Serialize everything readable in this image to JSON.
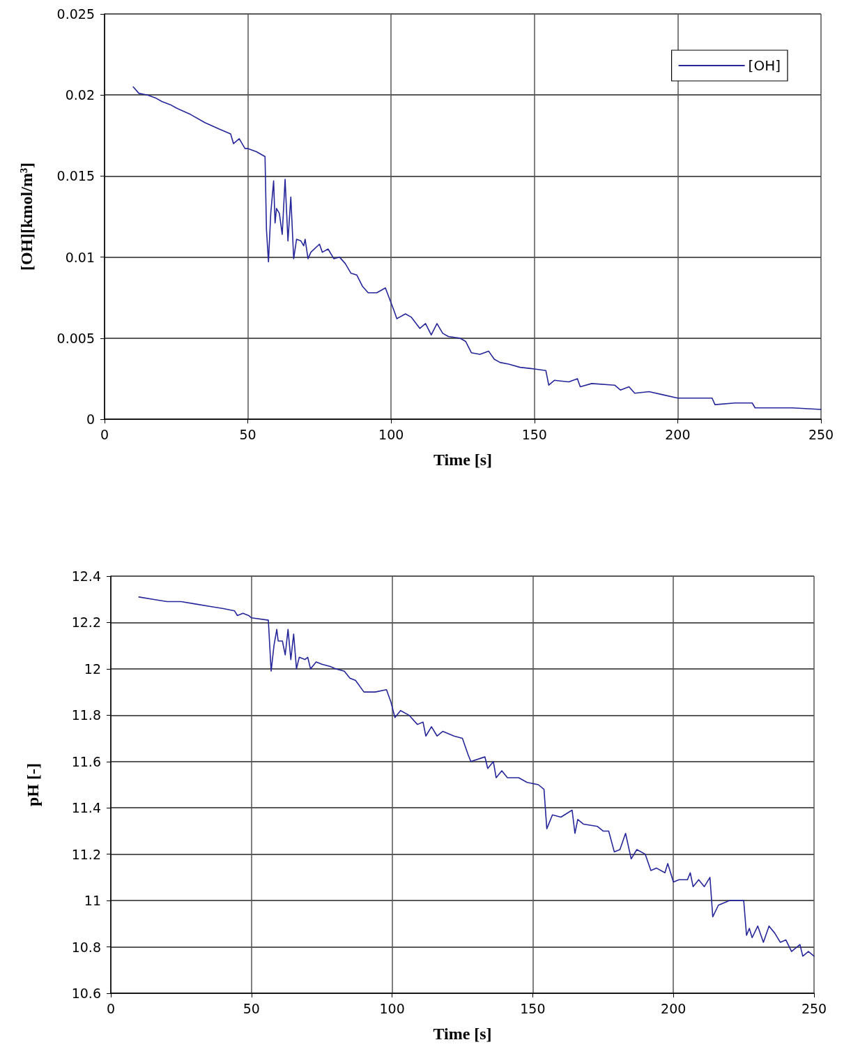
{
  "chart_data": [
    {
      "type": "line",
      "xlabel": "Time [s]",
      "ylabel": "[OH][kmol/m³]",
      "xlim": [
        0,
        250
      ],
      "xticks": [
        0,
        50,
        100,
        150,
        200,
        250
      ],
      "ylim": [
        0,
        0.025
      ],
      "yticks": [
        0,
        0.005,
        0.01,
        0.015,
        0.02,
        0.025
      ],
      "grid": true,
      "legend": "top right",
      "marker": "none",
      "line_style": "solid",
      "series": [
        {
          "name": "[OH]",
          "color": "#26269a",
          "x": [
            10,
            12,
            15,
            18,
            20,
            23,
            25,
            30,
            35,
            40,
            44,
            45,
            47,
            49,
            50,
            53,
            56,
            56.5,
            57.2,
            58,
            59,
            59.5,
            60,
            61,
            62,
            63,
            64,
            65,
            66,
            67,
            68.5,
            69.5,
            70,
            71,
            72,
            75,
            76,
            78,
            80,
            82,
            84,
            86,
            88,
            90,
            92,
            95,
            98,
            99.5,
            101,
            102,
            105,
            107,
            110,
            112,
            114,
            116,
            118,
            120,
            124,
            126,
            128,
            131,
            134,
            136,
            138,
            141,
            145,
            150,
            154,
            155,
            157,
            162,
            165,
            166,
            170,
            178,
            180,
            183,
            185,
            190,
            195,
            200,
            205,
            212,
            213,
            220,
            226,
            227,
            240,
            250
          ],
          "values": [
            0.0205,
            0.0201,
            0.02,
            0.0198,
            0.0196,
            0.0194,
            0.0192,
            0.0188,
            0.0183,
            0.0179,
            0.0176,
            0.017,
            0.0173,
            0.0167,
            0.0167,
            0.0165,
            0.0162,
            0.0117,
            0.0097,
            0.0127,
            0.0147,
            0.0121,
            0.013,
            0.0127,
            0.0114,
            0.0148,
            0.011,
            0.0137,
            0.0099,
            0.0111,
            0.011,
            0.0107,
            0.0111,
            0.0099,
            0.0103,
            0.0108,
            0.0103,
            0.0105,
            0.0099,
            0.01,
            0.0096,
            0.009,
            0.0089,
            0.0082,
            0.0078,
            0.0078,
            0.0081,
            0.0074,
            0.0067,
            0.0062,
            0.0065,
            0.0063,
            0.0056,
            0.0059,
            0.0052,
            0.0059,
            0.0053,
            0.0051,
            0.005,
            0.0048,
            0.0041,
            0.004,
            0.0042,
            0.0037,
            0.0035,
            0.0034,
            0.0032,
            0.0031,
            0.003,
            0.0021,
            0.0024,
            0.0023,
            0.0025,
            0.002,
            0.0022,
            0.0021,
            0.0018,
            0.002,
            0.0016,
            0.0017,
            0.0015,
            0.0013,
            0.0013,
            0.0013,
            0.0009,
            0.001,
            0.001,
            0.0007,
            0.0007,
            0.0006
          ]
        }
      ]
    },
    {
      "type": "line",
      "xlabel": "Time [s]",
      "ylabel": "pH [-]",
      "xlim": [
        0,
        250
      ],
      "xticks": [
        0,
        50,
        100,
        150,
        200,
        250
      ],
      "ylim": [
        10.6,
        12.4
      ],
      "yticks": [
        10.6,
        10.8,
        11,
        11.2,
        11.4,
        11.6,
        11.8,
        12,
        12.2,
        12.4
      ],
      "grid": true,
      "marker": "none",
      "line_style": "solid",
      "series": [
        {
          "color": "#26269a",
          "x": [
            10,
            15,
            20,
            25,
            30,
            35,
            40,
            44,
            45,
            47,
            49,
            50,
            56,
            57,
            58,
            59,
            59.5,
            61,
            62,
            63,
            64,
            65,
            66,
            67,
            69,
            70,
            71,
            73,
            75,
            78,
            80,
            83,
            85,
            87,
            90,
            94,
            98,
            99.5,
            101,
            103,
            106,
            109,
            111,
            112,
            114,
            116,
            118,
            122,
            125,
            127,
            128,
            133,
            134,
            136,
            137,
            139,
            141,
            145,
            148,
            152,
            154,
            155,
            157,
            160,
            164,
            165,
            166,
            168,
            173,
            175,
            177,
            179,
            181,
            183,
            185,
            187,
            190,
            192,
            194,
            197,
            198,
            200,
            202,
            205,
            206,
            207,
            209,
            211,
            213,
            214,
            216,
            220,
            225,
            226,
            227,
            228,
            230,
            232,
            234,
            236,
            238,
            240,
            242,
            245,
            246,
            248,
            250
          ],
          "values": [
            12.31,
            12.3,
            12.29,
            12.29,
            12.28,
            12.27,
            12.26,
            12.25,
            12.23,
            12.24,
            12.23,
            12.22,
            12.21,
            11.99,
            12.1,
            12.17,
            12.12,
            12.12,
            12.06,
            12.17,
            12.04,
            12.15,
            12,
            12.05,
            12.04,
            12.05,
            12,
            12.03,
            12.02,
            12.01,
            12,
            11.99,
            11.96,
            11.95,
            11.9,
            11.9,
            11.91,
            11.86,
            11.79,
            11.82,
            11.8,
            11.76,
            11.77,
            11.71,
            11.75,
            11.71,
            11.73,
            11.71,
            11.7,
            11.63,
            11.6,
            11.62,
            11.57,
            11.6,
            11.53,
            11.56,
            11.53,
            11.53,
            11.51,
            11.5,
            11.48,
            11.31,
            11.37,
            11.36,
            11.39,
            11.29,
            11.35,
            11.33,
            11.32,
            11.3,
            11.3,
            11.21,
            11.22,
            11.29,
            11.18,
            11.22,
            11.2,
            11.13,
            11.14,
            11.12,
            11.16,
            11.08,
            11.09,
            11.09,
            11.12,
            11.06,
            11.09,
            11.06,
            11.1,
            10.93,
            10.98,
            11,
            11,
            10.85,
            10.88,
            10.84,
            10.89,
            10.82,
            10.89,
            10.86,
            10.82,
            10.83,
            10.78,
            10.81,
            10.76,
            10.78,
            10.76
          ]
        }
      ]
    }
  ]
}
